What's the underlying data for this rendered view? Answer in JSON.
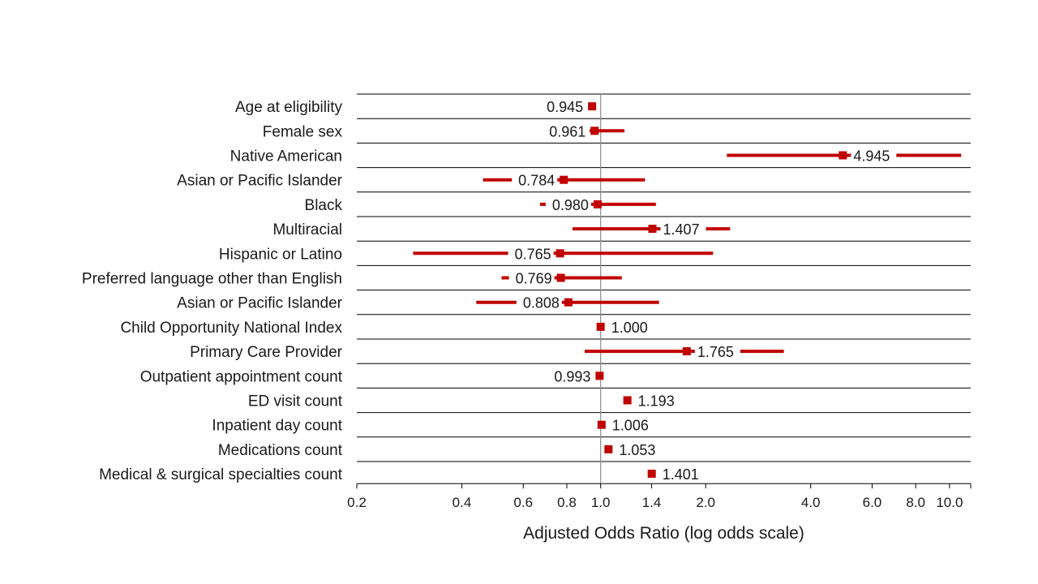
{
  "chart_data": {
    "type": "forest",
    "xlabel": "Adjusted Odds Ratio (log odds scale)",
    "x_scale": "log",
    "xlim": [
      0.2,
      11.5
    ],
    "reference_line": 1.0,
    "x_ticks": [
      {
        "value": 0.2,
        "label": "0.2"
      },
      {
        "value": 0.4,
        "label": "0.4"
      },
      {
        "value": 0.6,
        "label": "0.6"
      },
      {
        "value": 0.8,
        "label": "0.8"
      },
      {
        "value": 1.0,
        "label": "1.0"
      },
      {
        "value": 1.4,
        "label": "1.4"
      },
      {
        "value": 2.0,
        "label": "2.0"
      },
      {
        "value": 4.0,
        "label": "4.0"
      },
      {
        "value": 6.0,
        "label": "6.0"
      },
      {
        "value": 8.0,
        "label": "8.0"
      },
      {
        "value": 10.0,
        "label": "10.0"
      }
    ],
    "marker_color": "#c00000",
    "rows": [
      {
        "label": "Age at eligibility",
        "or": 0.945,
        "or_label": "0.945",
        "ci_low": 0.94,
        "ci_high": 0.95
      },
      {
        "label": "Female sex",
        "or": 0.961,
        "or_label": "0.961",
        "ci_low": 0.93,
        "ci_high": 1.17
      },
      {
        "label": "Native American",
        "or": 4.945,
        "or_label": "4.945",
        "ci_low": 2.3,
        "ci_high": 10.8
      },
      {
        "label": "Asian or Pacific Islander",
        "or": 0.784,
        "or_label": "0.784",
        "ci_low": 0.46,
        "ci_high": 1.34
      },
      {
        "label": "Black",
        "or": 0.98,
        "or_label": "0.980",
        "ci_low": 0.67,
        "ci_high": 1.44
      },
      {
        "label": "Multiracial",
        "or": 1.407,
        "or_label": "1.407",
        "ci_low": 0.83,
        "ci_high": 2.35
      },
      {
        "label": "Hispanic or Latino",
        "or": 0.765,
        "or_label": "0.765",
        "ci_low": 0.29,
        "ci_high": 2.1
      },
      {
        "label": "Preferred language other than English",
        "or": 0.769,
        "or_label": "0.769",
        "ci_low": 0.52,
        "ci_high": 1.15
      },
      {
        "label": "Asian or Pacific Islander",
        "or": 0.808,
        "or_label": "0.808",
        "ci_low": 0.44,
        "ci_high": 1.47
      },
      {
        "label": "Child Opportunity National Index",
        "or": 1.0,
        "or_label": "1.000",
        "ci_low": 1.0,
        "ci_high": 1.0
      },
      {
        "label": "Primary Care Provider",
        "or": 1.765,
        "or_label": "1.765",
        "ci_low": 0.9,
        "ci_high": 3.35
      },
      {
        "label": "Outpatient appointment count",
        "or": 0.993,
        "or_label": "0.993",
        "ci_low": 0.99,
        "ci_high": 1.0
      },
      {
        "label": "ED visit count",
        "or": 1.193,
        "or_label": "1.193",
        "ci_low": 1.19,
        "ci_high": 1.2
      },
      {
        "label": "Inpatient day count",
        "or": 1.006,
        "or_label": "1.006",
        "ci_low": 1.0,
        "ci_high": 1.01
      },
      {
        "label": "Medications count",
        "or": 1.053,
        "or_label": "1.053",
        "ci_low": 1.05,
        "ci_high": 1.06
      },
      {
        "label": "Medical & surgical specialties count",
        "or": 1.401,
        "or_label": "1.401",
        "ci_low": 1.39,
        "ci_high": 1.41
      }
    ]
  }
}
